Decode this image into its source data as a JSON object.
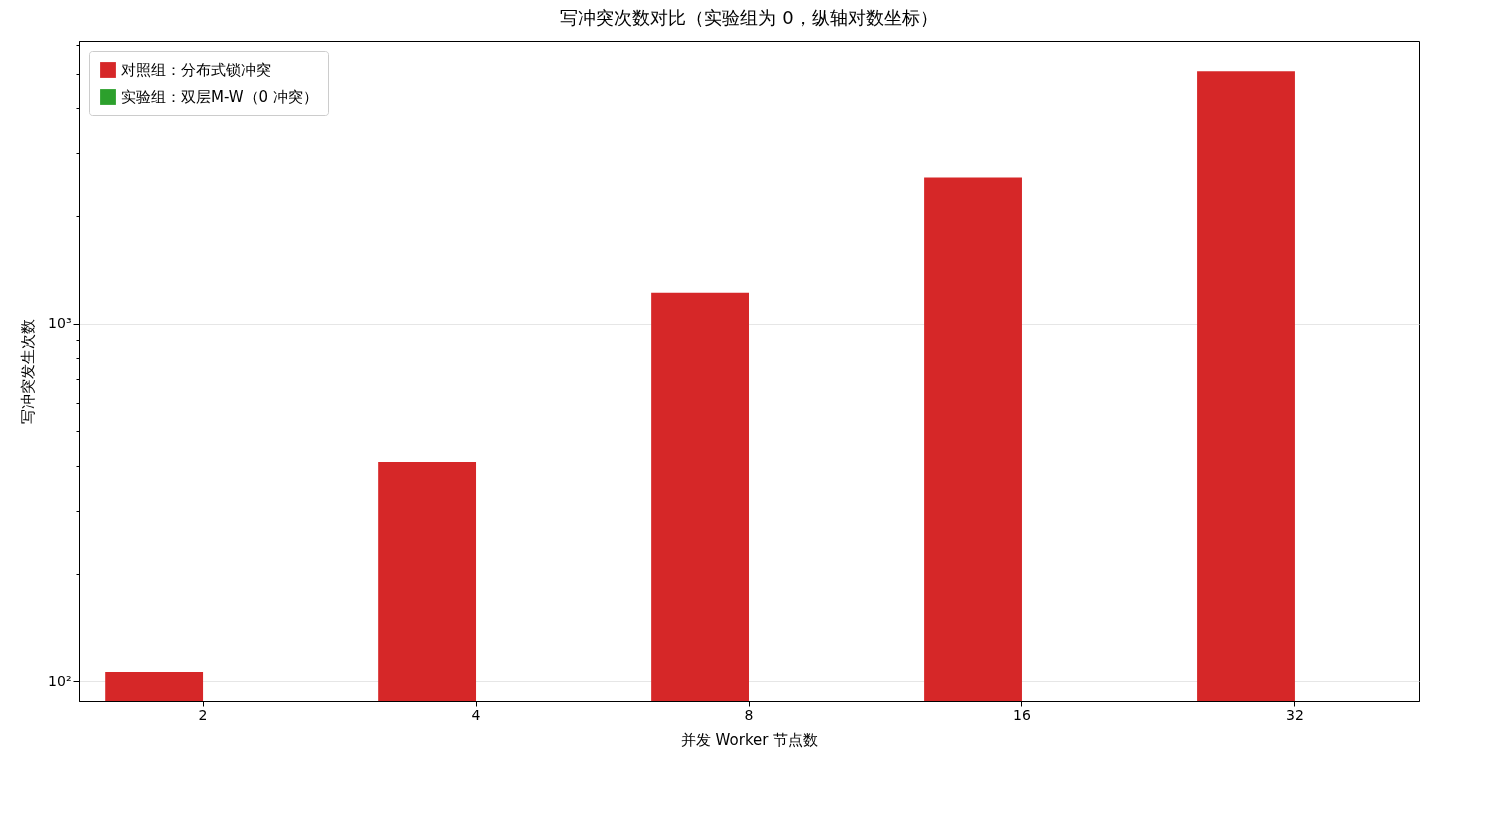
{
  "chart_data": {
    "type": "bar",
    "title": "写冲突次数对比（实验组为 0，纵轴对数坐标）",
    "xlabel": "并发 Worker 节点数",
    "ylabel": "写冲突发生次数",
    "categories": [
      "2",
      "4",
      "8",
      "16",
      "32"
    ],
    "series": [
      {
        "name": "对照组：分布式锁冲突",
        "color": "#d62728",
        "values": [
          106,
          410,
          1220,
          2560,
          5080
        ]
      },
      {
        "name": "实验组：双层M-W（0 冲突）",
        "color": "#2ca02c",
        "values": [
          null,
          null,
          null,
          null,
          null
        ]
      }
    ],
    "log": "y",
    "ylim": [
      88,
      6170
    ],
    "yticks": [
      {
        "value": 100,
        "label": "10²"
      },
      {
        "value": 200,
        "label": null
      },
      {
        "value": 300,
        "label": null
      },
      {
        "value": 400,
        "label": null
      },
      {
        "value": 500,
        "label": null
      },
      {
        "value": 600,
        "label": null
      },
      {
        "value": 700,
        "label": null
      },
      {
        "value": 800,
        "label": null
      },
      {
        "value": 900,
        "label": null
      },
      {
        "value": 1000,
        "label": "10³"
      },
      {
        "value": 2000,
        "label": null
      },
      {
        "value": 3000,
        "label": null
      },
      {
        "value": 4000,
        "label": null
      },
      {
        "value": 5000,
        "label": null
      },
      {
        "value": 6000,
        "label": null
      }
    ],
    "grid": "y",
    "legend": "top left"
  }
}
